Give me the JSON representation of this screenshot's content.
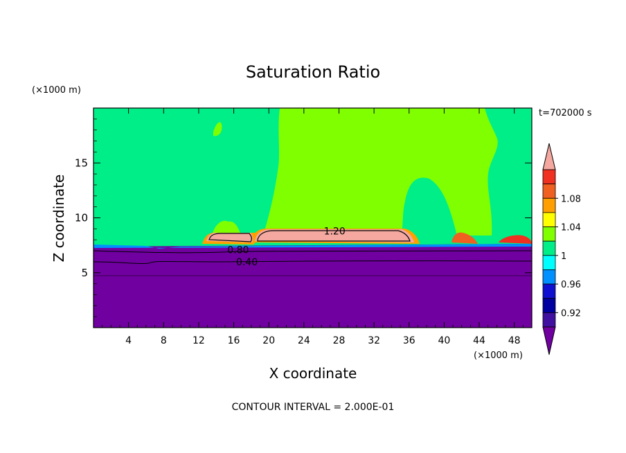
{
  "chart_data": {
    "type": "heatmap",
    "title": "Saturation Ratio",
    "xlabel": "X coordinate",
    "ylabel": "Z coordinate",
    "x_unit": "(×1000 m)",
    "y_unit": "(×1000 m)",
    "time_label": "t=702000 s",
    "footer": "CONTOUR INTERVAL = 2.000E-01",
    "xlim": [
      0,
      50
    ],
    "ylim": [
      0,
      20
    ],
    "x_ticks": [
      4,
      8,
      12,
      16,
      20,
      24,
      28,
      32,
      36,
      40,
      44,
      48
    ],
    "y_ticks": [
      5,
      10,
      15
    ],
    "colorbar": {
      "labels": [
        "1.08",
        "1.04",
        "1",
        "0.96",
        "0.92"
      ],
      "label_values": [
        1.08,
        1.04,
        1.0,
        0.96,
        0.92
      ],
      "bins": [
        {
          "value": 1.1,
          "color": "#f4a8a0"
        },
        {
          "value": 1.09,
          "color": "#f03020"
        },
        {
          "value": 1.07,
          "color": "#f06020"
        },
        {
          "value": 1.05,
          "color": "#ffa000"
        },
        {
          "value": 1.03,
          "color": "#ffff00"
        },
        {
          "value": 1.01,
          "color": "#80ff00"
        },
        {
          "value": 0.99,
          "color": "#00ee88"
        },
        {
          "value": 0.97,
          "color": "#00ffff"
        },
        {
          "value": 0.95,
          "color": "#0090ff"
        },
        {
          "value": 0.93,
          "color": "#1010d0"
        },
        {
          "value": 0.91,
          "color": "#0000a0"
        },
        {
          "value": 0.9,
          "color": "#4010a0"
        },
        {
          "value": 0.88,
          "color": "#7000a0"
        }
      ]
    },
    "contour_labels": [
      {
        "text": "1.20",
        "x": 27.5,
        "z": 8.8
      },
      {
        "text": "0.80",
        "x": 16.5,
        "z": 7.1
      },
      {
        "text": "0.40",
        "x": 17.5,
        "z": 6.0
      }
    ],
    "contour_lines": [
      {
        "value": 0.4,
        "z": 6.1
      },
      {
        "value": 0.8,
        "z": 7.1
      }
    ],
    "regions": {
      "lower_layer_top_z": 7.5,
      "purple_color": "#7000a0",
      "green_color": "#00ee88",
      "lime_color": "#80ff00"
    }
  }
}
